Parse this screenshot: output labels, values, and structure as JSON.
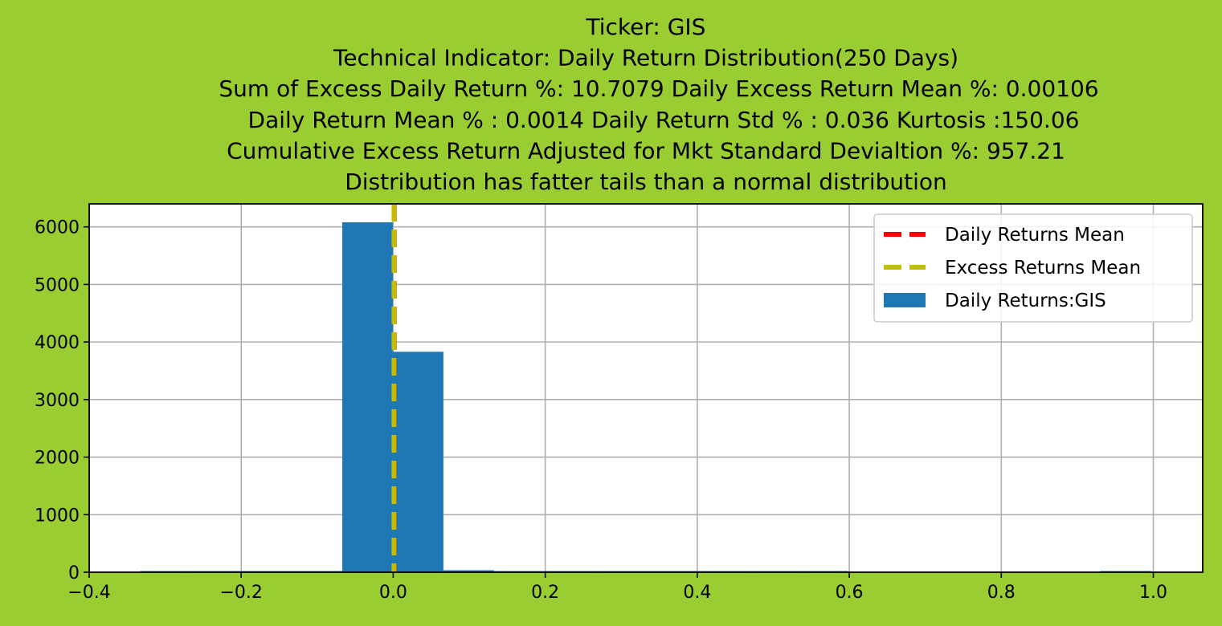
{
  "chart_data": {
    "type": "bar",
    "title_lines": [
      "Ticker: GIS",
      "Technical Indicator: Daily Return Distribution(250 Days)",
      "Sum of Excess Daily Return %: 10.7079   Daily Excess Return Mean %: 0.00106",
      "Daily Return Mean % : 0.0014    Daily Return Std % : 0.036  Kurtosis :150.06",
      "Cumulative Excess Return Adjusted for Mkt Standard Devialtion %: 957.21",
      "Distribution has fatter tails than a normal distribution"
    ],
    "xlabel": "",
    "ylabel": "",
    "xlim": [
      -0.4,
      1.065
    ],
    "ylim": [
      0,
      6400
    ],
    "x_ticks": [
      -0.4,
      -0.2,
      0.0,
      0.2,
      0.4,
      0.6,
      0.8,
      1.0
    ],
    "x_tick_labels": [
      "−0.4",
      "−0.2",
      "0.0",
      "0.2",
      "0.4",
      "0.6",
      "0.8",
      "1.0"
    ],
    "y_ticks": [
      0,
      1000,
      2000,
      3000,
      4000,
      5000,
      6000
    ],
    "y_tick_labels": [
      "0",
      "1000",
      "2000",
      "3000",
      "4000",
      "5000",
      "6000"
    ],
    "grid": true,
    "legend_position": "top-right",
    "histogram": {
      "name": "Daily Returns:GIS",
      "color": "#1f77b4",
      "bin_edges": [
        -0.333,
        -0.2665,
        -0.2,
        -0.1335,
        -0.067,
        -0.0005,
        0.066,
        0.1325,
        0.199,
        0.2655,
        0.332,
        0.3985,
        0.465,
        0.5315,
        0.598,
        0.6645,
        0.731,
        0.7975,
        0.864,
        0.9305,
        0.997
      ],
      "counts": [
        15,
        15,
        3,
        8,
        6080,
        3830,
        35,
        2,
        1,
        1,
        12,
        1,
        8,
        1,
        0,
        0,
        0,
        0,
        0,
        1
      ]
    },
    "vlines": [
      {
        "name": "Daily Returns Mean",
        "x": 0.0014,
        "color": "#ff0000",
        "style": "dashed"
      },
      {
        "name": "Excess Returns Mean",
        "x": 0.00106,
        "color": "#bfbf00",
        "style": "dashed"
      }
    ],
    "legend": [
      {
        "label": "Daily Returns Mean",
        "kind": "line",
        "color": "#ff0000"
      },
      {
        "label": "Excess Returns Mean",
        "kind": "line",
        "color": "#bfbf00"
      },
      {
        "label": "Daily Returns:GIS",
        "kind": "patch",
        "color": "#1f77b4"
      }
    ],
    "colors": {
      "figure_background": "#9acd32",
      "axes_background": "#ffffff",
      "grid": "#b0b0b0"
    }
  }
}
